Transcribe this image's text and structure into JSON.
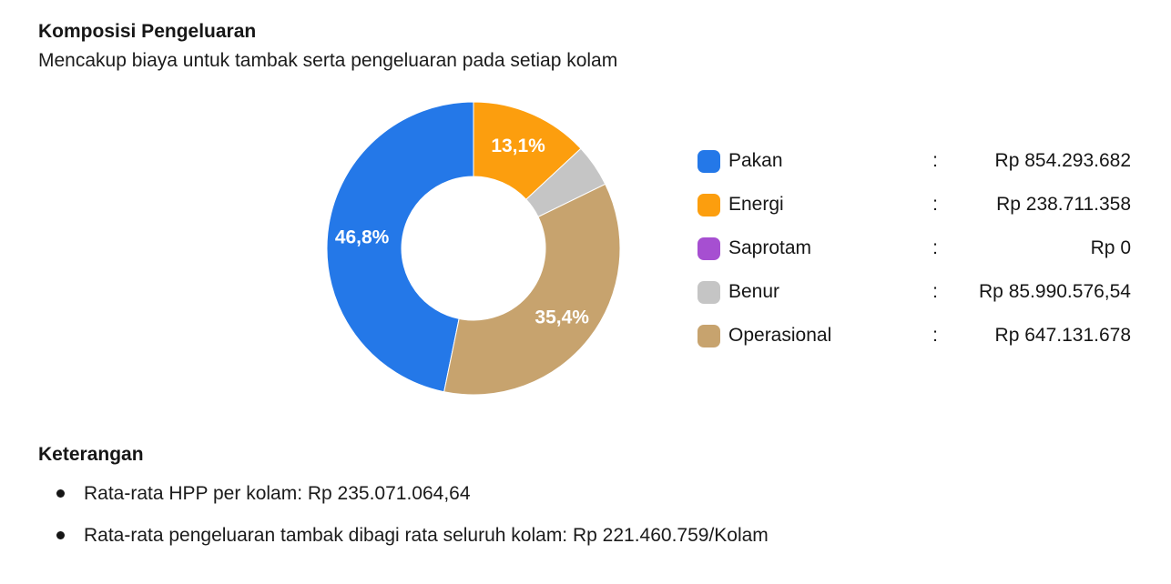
{
  "page": {
    "title": "Komposisi Pengeluaran",
    "subtitle": "Mencakup biaya untuk tambak serta pengeluaran pada setiap kolam"
  },
  "chart_data": {
    "type": "pie",
    "subtype": "donut",
    "title": "Komposisi Pengeluaran",
    "donut_hole_ratio": 0.49,
    "rotation_deg": 191.59,
    "direction": "clockwise",
    "legend_position": "right",
    "label_color": "#ffffff",
    "categories": [
      "Pakan",
      "Energi",
      "Saprotam",
      "Benur",
      "Operasional"
    ],
    "series": [
      {
        "name": "Pakan",
        "value": 854293682,
        "pct": 46.8,
        "pct_label": "46,8%",
        "amount_label": "Rp 854.293.682",
        "color": "#2478E8"
      },
      {
        "name": "Energi",
        "value": 238711358,
        "pct": 13.1,
        "pct_label": "13,1%",
        "amount_label": "Rp 238.711.358",
        "color": "#FC9E0E"
      },
      {
        "name": "Saprotam",
        "value": 0,
        "pct": 0.0,
        "pct_label": "",
        "amount_label": "Rp 0",
        "color": "#A64FD1"
      },
      {
        "name": "Benur",
        "value": 85990576.54,
        "pct": 4.7,
        "pct_label": "",
        "amount_label": "Rp 85.990.576,54",
        "color": "#C5C5C5"
      },
      {
        "name": "Operasional",
        "value": 647131678,
        "pct": 35.4,
        "pct_label": "35,4%",
        "amount_label": "Rp 647.131.678",
        "color": "#C7A36E"
      }
    ],
    "colon": ":"
  },
  "keterangan": {
    "heading": "Keterangan",
    "items": [
      "Rata-rata HPP per kolam: Rp 235.071.064,64",
      "Rata-rata pengeluaran tambak dibagi rata seluruh kolam: Rp 221.460.759/Kolam"
    ]
  }
}
